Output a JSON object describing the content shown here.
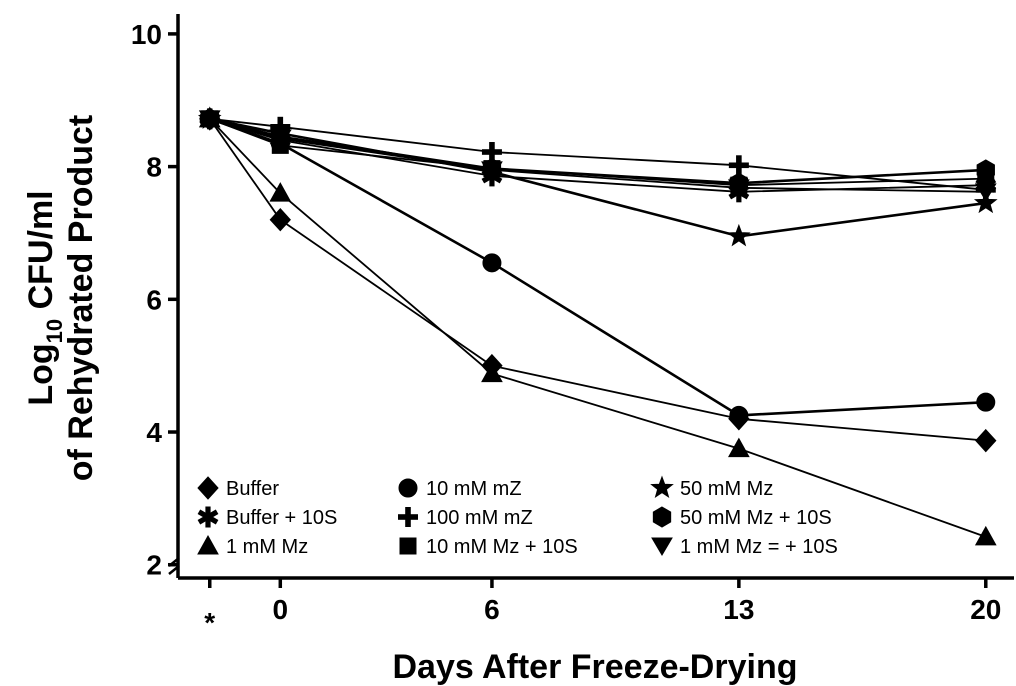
{
  "chart_data": {
    "type": "line",
    "xlabel": "Days After Freeze-Drying",
    "ylabel_line1_prefix": "Log",
    "ylabel_line1_subscript": "10",
    "ylabel_line1_suffix": " CFU/ml",
    "ylabel_line2": "of Rehydrated Product",
    "x_ticks": [
      {
        "value": -2,
        "label": "*"
      },
      {
        "value": 0,
        "label": "0"
      },
      {
        "value": 6,
        "label": "6"
      },
      {
        "value": 13,
        "label": "13"
      },
      {
        "value": 20,
        "label": "20"
      }
    ],
    "y_ticks": [
      {
        "value": 2,
        "label": "2"
      },
      {
        "value": 4,
        "label": "4"
      },
      {
        "value": 6,
        "label": "6"
      },
      {
        "value": 8,
        "label": "8"
      },
      {
        "value": 10,
        "label": "10"
      }
    ],
    "xlim": [
      -2.9,
      20.8
    ],
    "ylim": [
      1.8,
      10.3
    ],
    "legend_position": "bottom",
    "series": [
      {
        "name": "Buffer",
        "marker": "diamond",
        "width": 1.8,
        "points": [
          [
            -2,
            8.72
          ],
          [
            0,
            7.2
          ],
          [
            6,
            5.0
          ],
          [
            13,
            4.2
          ],
          [
            20,
            3.87
          ]
        ]
      },
      {
        "name": "Buffer + 10S",
        "marker": "asterisk",
        "width": 1.8,
        "points": [
          [
            -2,
            8.72
          ],
          [
            0,
            8.4
          ],
          [
            6,
            7.86
          ],
          [
            13,
            7.62
          ],
          [
            20,
            7.72
          ]
        ]
      },
      {
        "name": "1 mM Mz",
        "marker": "triangle-up",
        "width": 1.8,
        "points": [
          [
            -2,
            8.72
          ],
          [
            0,
            7.6
          ],
          [
            6,
            4.88
          ],
          [
            13,
            3.75
          ],
          [
            20,
            2.42
          ]
        ]
      },
      {
        "name": "10 mM mZ",
        "marker": "circle",
        "width": 2.6,
        "points": [
          [
            -2,
            8.72
          ],
          [
            0,
            8.35
          ],
          [
            6,
            6.55
          ],
          [
            13,
            4.25
          ],
          [
            20,
            4.45
          ]
        ]
      },
      {
        "name": "100 mM mZ",
        "marker": "plus",
        "width": 1.8,
        "points": [
          [
            -2,
            8.72
          ],
          [
            0,
            8.6
          ],
          [
            6,
            8.22
          ],
          [
            13,
            8.02
          ],
          [
            20,
            7.65
          ]
        ]
      },
      {
        "name": "10 mM Mz + 10S",
        "marker": "square",
        "width": 1.8,
        "points": [
          [
            -2,
            8.72
          ],
          [
            0,
            8.32
          ],
          [
            6,
            7.97
          ],
          [
            13,
            7.72
          ],
          [
            20,
            7.82
          ]
        ]
      },
      {
        "name": "50 mM Mz",
        "marker": "star",
        "width": 2.6,
        "points": [
          [
            -2,
            8.72
          ],
          [
            0,
            8.5
          ],
          [
            6,
            7.92
          ],
          [
            13,
            6.95
          ],
          [
            20,
            7.45
          ]
        ]
      },
      {
        "name": "50 mM Mz + 10S",
        "marker": "hexagon",
        "width": 2.6,
        "points": [
          [
            -2,
            8.72
          ],
          [
            0,
            8.45
          ],
          [
            6,
            7.97
          ],
          [
            13,
            7.75
          ],
          [
            20,
            7.95
          ]
        ]
      },
      {
        "name": "1 mM Mz = + 10S",
        "marker": "triangle-down",
        "width": 1.8,
        "points": [
          [
            -2,
            8.72
          ],
          [
            0,
            8.42
          ],
          [
            6,
            7.95
          ],
          [
            13,
            7.68
          ],
          [
            20,
            7.62
          ]
        ]
      }
    ]
  }
}
